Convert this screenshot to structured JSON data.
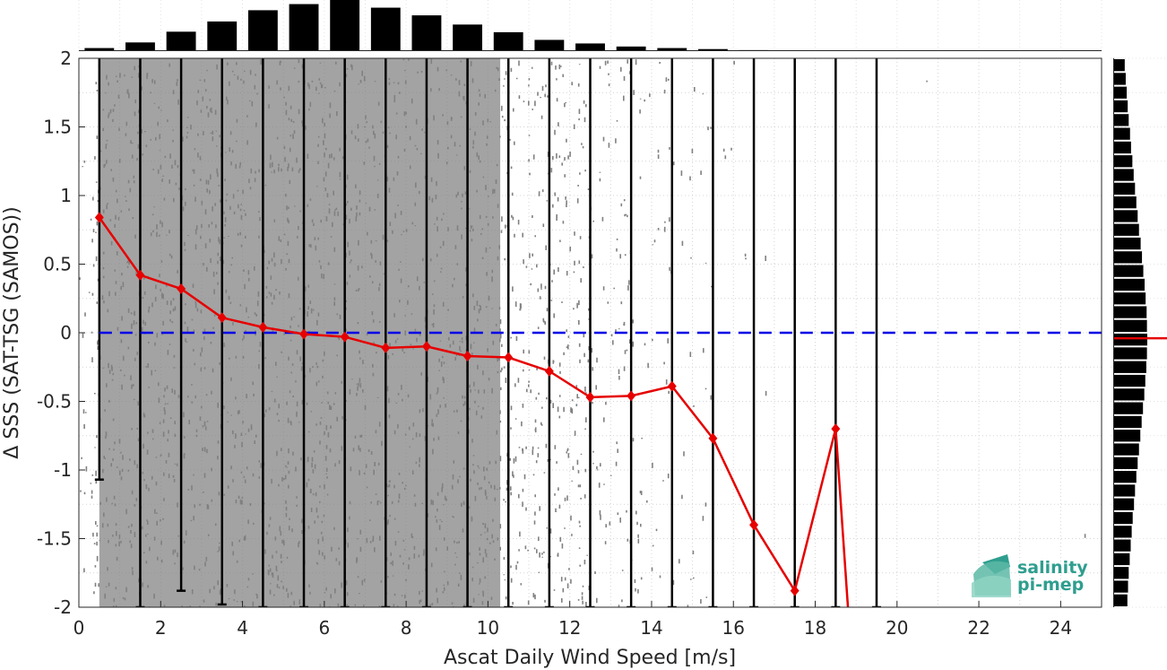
{
  "chart_data": {
    "type": "scatter",
    "xlabel": "Ascat Daily Wind Speed [m/s]",
    "ylabel": "Δ SSS (SAT-TSG (SAMOS))",
    "xlim": [
      0,
      25
    ],
    "ylim": [
      -2,
      2
    ],
    "xticks": [
      0,
      2,
      4,
      6,
      8,
      10,
      12,
      14,
      16,
      18,
      20,
      22,
      24
    ],
    "yticks": [
      -2,
      -1.5,
      -1,
      -0.5,
      0,
      0.5,
      1,
      1.5,
      2
    ],
    "ytick_labels": [
      "-2",
      "-1.5",
      "-1",
      "-0.5",
      "0",
      "0.5",
      "1",
      "1.5",
      "2"
    ],
    "grid": true,
    "reference_line": {
      "y": 0,
      "color": "#0000e6",
      "style": "dashed"
    },
    "scatter_color": "#808080",
    "bin_centers": [
      0.5,
      1.5,
      2.5,
      3.5,
      4.5,
      5.5,
      6.5,
      7.5,
      8.5,
      9.5,
      10.5,
      11.5,
      12.5,
      13.5,
      14.5,
      15.5,
      16.5,
      17.5,
      18.5,
      19.5
    ],
    "series": [
      {
        "color": "#e60000",
        "marker": "diamond",
        "x": [
          0.5,
          1.5,
          2.5,
          3.5,
          4.5,
          5.5,
          6.5,
          7.5,
          8.5,
          9.5,
          10.5,
          11.5,
          12.5,
          13.5,
          14.5,
          15.5,
          16.5,
          17.5,
          18.5
        ],
        "y": [
          0.84,
          0.42,
          0.32,
          0.11,
          0.04,
          -0.01,
          -0.03,
          -0.11,
          -0.1,
          -0.17,
          -0.18,
          -0.28,
          -0.47,
          -0.46,
          -0.39,
          -0.77,
          -1.4,
          -1.88,
          -0.7
        ],
        "tail_to": {
          "x": 18.8,
          "y": -2.0
        }
      }
    ],
    "error_bars": [
      {
        "x": 0.5,
        "low": -1.07,
        "high": 2.0
      },
      {
        "x": 1.5,
        "low": -2.0,
        "high": 2.0
      },
      {
        "x": 2.5,
        "low": -1.88,
        "high": 2.0
      },
      {
        "x": 3.5,
        "low": -1.98,
        "high": 2.0
      },
      {
        "x": 4.5,
        "low": -2.0,
        "high": 2.0
      },
      {
        "x": 5.5,
        "low": -2.0,
        "high": 2.0
      },
      {
        "x": 6.5,
        "low": -2.0,
        "high": 2.0
      },
      {
        "x": 7.5,
        "low": -2.0,
        "high": 2.0
      },
      {
        "x": 8.5,
        "low": -2.0,
        "high": 2.0
      },
      {
        "x": 9.5,
        "low": -2.0,
        "high": 2.0
      },
      {
        "x": 10.5,
        "low": -2.0,
        "high": 2.0
      },
      {
        "x": 11.5,
        "low": -2.0,
        "high": 2.0
      },
      {
        "x": 12.5,
        "low": -2.0,
        "high": 2.0
      },
      {
        "x": 13.5,
        "low": -2.0,
        "high": 2.0
      },
      {
        "x": 14.5,
        "low": -2.0,
        "high": 2.0
      },
      {
        "x": 15.5,
        "low": -2.0,
        "high": 2.0
      },
      {
        "x": 16.5,
        "low": -2.0,
        "high": 2.0
      },
      {
        "x": 17.5,
        "low": -2.0,
        "high": 2.0
      },
      {
        "x": 18.5,
        "low": -2.0,
        "high": 2.0
      },
      {
        "x": 19.5,
        "low": -2.0,
        "high": 2.0
      }
    ],
    "top_histogram": {
      "bin_centers": [
        0.5,
        1.5,
        2.5,
        3.5,
        4.5,
        5.5,
        6.5,
        7.5,
        8.5,
        9.5,
        10.5,
        11.5,
        12.5,
        13.5,
        14.5,
        15.5,
        16.5,
        17.5
      ],
      "relative_counts": [
        0.06,
        0.17,
        0.38,
        0.58,
        0.8,
        0.92,
        1.0,
        0.85,
        0.7,
        0.52,
        0.37,
        0.22,
        0.15,
        0.09,
        0.06,
        0.04,
        0.02,
        0.01
      ]
    },
    "right_histogram": {
      "bin_width": 0.1,
      "relative_counts": [
        0.32,
        0.35,
        0.38,
        0.41,
        0.44,
        0.48,
        0.51,
        0.55,
        0.59,
        0.63,
        0.67,
        0.71,
        0.75,
        0.8,
        0.84,
        0.88,
        0.92,
        0.95,
        0.98,
        0.99,
        1.0,
        0.99,
        0.97,
        0.94,
        0.91,
        0.87,
        0.83,
        0.79,
        0.75,
        0.71,
        0.67,
        0.63,
        0.6,
        0.56,
        0.53,
        0.5,
        0.47,
        0.44,
        0.42,
        0.4
      ]
    },
    "right_marker": {
      "y": -0.04,
      "color": "#e60000"
    }
  },
  "logo": {
    "line1": "salinity",
    "line2": "pi-mep",
    "color": "#2f9e8f"
  }
}
